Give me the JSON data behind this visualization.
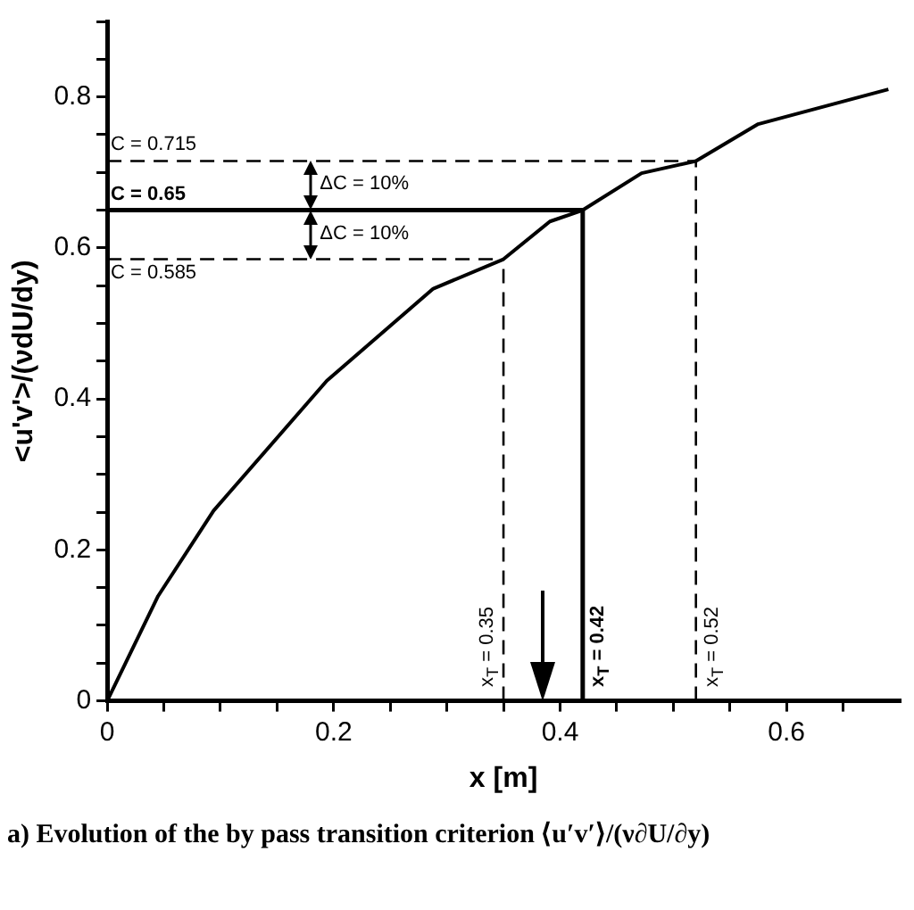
{
  "chart_data": {
    "type": "line",
    "title": "a) Evolution of the by pass transition criterion ⟨u′v′⟩/(ν∂U/∂y)",
    "xlabel": "x [m]",
    "ylabel": "<u'v'>/(νdU/dy)",
    "x": [
      0,
      0.045,
      0.094,
      0.194,
      0.288,
      0.35,
      0.391,
      0.42,
      0.472,
      0.52,
      0.575,
      0.69
    ],
    "series": [
      {
        "color": "#000000",
        "values": [
          0,
          0.139,
          0.252,
          0.424,
          0.546,
          0.585,
          0.635,
          0.65,
          0.699,
          0.715,
          0.764,
          0.81
        ]
      }
    ],
    "xlim": [
      0,
      0.7
    ],
    "ylim": [
      0,
      0.9
    ],
    "xticks": [
      0,
      {
        "value": 0.05,
        "label": null
      },
      {
        "value": 0.1,
        "label": null
      },
      {
        "value": 0.15,
        "label": null
      },
      0.2,
      {
        "value": 0.25,
        "label": null
      },
      {
        "value": 0.3,
        "label": null
      },
      {
        "value": 0.35,
        "label": null
      },
      0.4,
      {
        "value": 0.45,
        "label": null
      },
      {
        "value": 0.5,
        "label": null
      },
      {
        "value": 0.55,
        "label": null
      },
      0.6,
      {
        "value": 0.65,
        "label": null
      }
    ],
    "yticks": [
      0,
      {
        "value": 0.05,
        "label": null
      },
      {
        "value": 0.1,
        "label": null
      },
      {
        "value": 0.15,
        "label": null
      },
      0.2,
      {
        "value": 0.25,
        "label": null
      },
      {
        "value": 0.3,
        "label": null
      },
      {
        "value": 0.35,
        "label": null
      },
      0.4,
      {
        "value": 0.45,
        "label": null
      },
      {
        "value": 0.5,
        "label": null
      },
      {
        "value": 0.55,
        "label": null
      },
      0.6,
      {
        "value": 0.65,
        "label": null
      },
      {
        "value": 0.7,
        "label": null
      },
      {
        "value": 0.75,
        "label": null
      },
      0.8,
      {
        "value": 0.85,
        "label": null
      },
      {
        "value": 0.9,
        "label": null
      }
    ],
    "ref_lines": [
      {
        "axis": "y",
        "value": 0.715,
        "label": "C = 0.715",
        "line_style": "dashed"
      },
      {
        "axis": "y",
        "value": 0.65,
        "label": "C = 0.65",
        "line_style": "solid"
      },
      {
        "axis": "y",
        "value": 0.585,
        "label": "C = 0.585",
        "line_style": "dashed"
      },
      {
        "axis": "x",
        "value": 0.35,
        "label": "x$_{T}$ = 0.35",
        "line_style": "dashed"
      },
      {
        "axis": "x",
        "value": 0.42,
        "label": "x$_{T}$ = 0.42",
        "line_style": "solid"
      },
      {
        "axis": "x",
        "value": 0.52,
        "label": "x$_{T}$ = 0.52",
        "line_style": "dashed"
      }
    ],
    "annotations": [
      "ΔC = 10%",
      "ΔC = 10%"
    ],
    "grid": false,
    "legend": false,
    "marker": "none",
    "line_style": "solid"
  }
}
